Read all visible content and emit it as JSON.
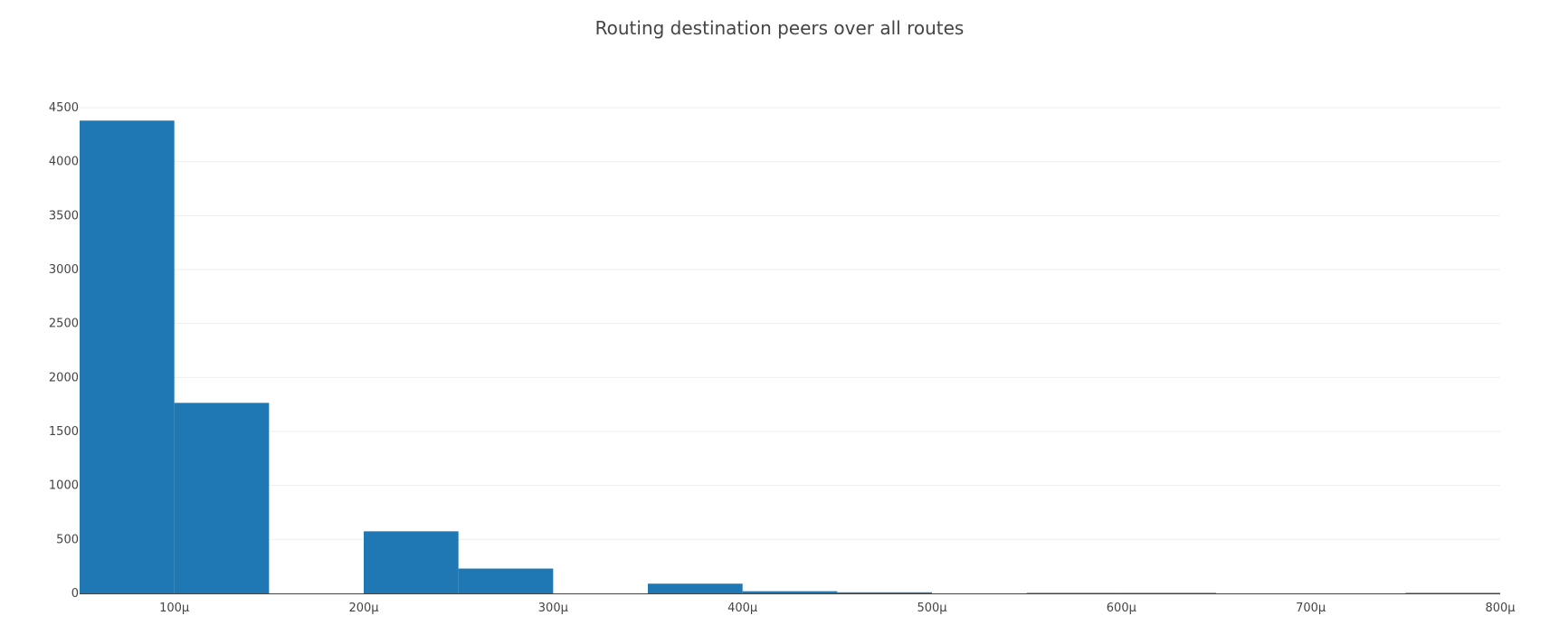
{
  "chart_data": {
    "type": "bar",
    "title": "Routing destination peers over all routes",
    "xlabel": "",
    "ylabel": "",
    "ylim": [
      0,
      4500
    ],
    "xlim": [
      5e-05,
      0.0008
    ],
    "bin_width": 5e-05,
    "y_ticks": [
      {
        "value": 0,
        "label": "0"
      },
      {
        "value": 500,
        "label": "500"
      },
      {
        "value": 1000,
        "label": "1000"
      },
      {
        "value": 1500,
        "label": "1500"
      },
      {
        "value": 2000,
        "label": "2000"
      },
      {
        "value": 2500,
        "label": "2500"
      },
      {
        "value": 3000,
        "label": "3000"
      },
      {
        "value": 3500,
        "label": "3500"
      },
      {
        "value": 4000,
        "label": "4000"
      },
      {
        "value": 4500,
        "label": "4500"
      }
    ],
    "x_ticks": [
      {
        "value": 0.0001,
        "label": "100μ"
      },
      {
        "value": 0.0002,
        "label": "200μ"
      },
      {
        "value": 0.0003,
        "label": "300μ"
      },
      {
        "value": 0.0004,
        "label": "400μ"
      },
      {
        "value": 0.0005,
        "label": "500μ"
      },
      {
        "value": 0.0006,
        "label": "600μ"
      },
      {
        "value": 0.0007,
        "label": "700μ"
      },
      {
        "value": 0.0008,
        "label": "800μ"
      }
    ],
    "bins": [
      {
        "start": 5e-05,
        "end": 0.0001,
        "count": 4380
      },
      {
        "start": 0.0001,
        "end": 0.00015,
        "count": 1765
      },
      {
        "start": 0.00015,
        "end": 0.0002,
        "count": 0
      },
      {
        "start": 0.0002,
        "end": 0.00025,
        "count": 575
      },
      {
        "start": 0.00025,
        "end": 0.0003,
        "count": 230
      },
      {
        "start": 0.0003,
        "end": 0.00035,
        "count": 0
      },
      {
        "start": 0.00035,
        "end": 0.0004,
        "count": 90
      },
      {
        "start": 0.0004,
        "end": 0.00045,
        "count": 20
      },
      {
        "start": 0.00045,
        "end": 0.0005,
        "count": 10
      },
      {
        "start": 0.0005,
        "end": 0.00055,
        "count": 0
      },
      {
        "start": 0.00055,
        "end": 0.0006,
        "count": 5
      },
      {
        "start": 0.0006,
        "end": 0.00065,
        "count": 5
      },
      {
        "start": 0.00065,
        "end": 0.0007,
        "count": 0
      },
      {
        "start": 0.0007,
        "end": 0.00075,
        "count": 0
      },
      {
        "start": 0.00075,
        "end": 0.0008,
        "count": 5
      }
    ],
    "bar_color": "#1f77b4",
    "grid": true,
    "legend": "none"
  }
}
